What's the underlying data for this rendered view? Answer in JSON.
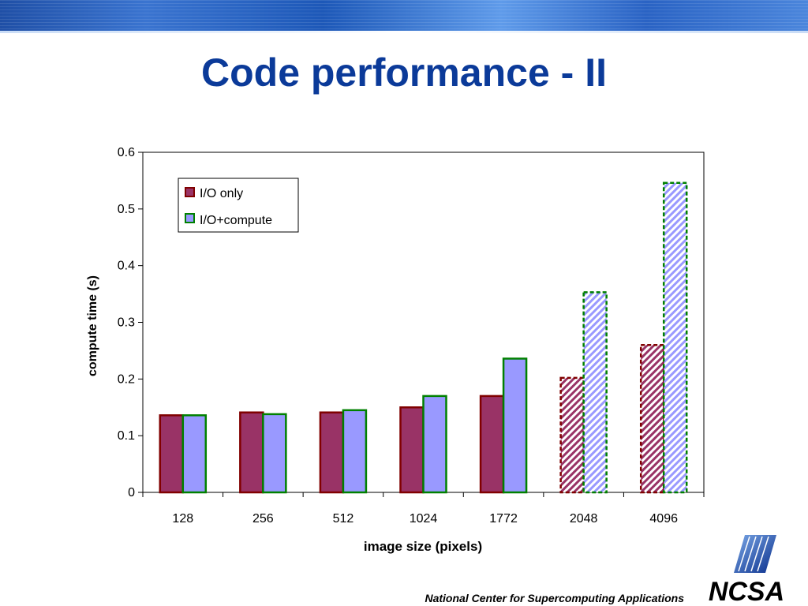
{
  "slide": {
    "title": "Code performance - II",
    "footer": "National Center for Supercomputing Applications",
    "logo_text": "NCSA"
  },
  "chart_data": {
    "type": "bar",
    "title": "",
    "xlabel": "image size (pixels)",
    "ylabel": "compute time (s)",
    "ylim": [
      0,
      0.6
    ],
    "yticks": [
      "0",
      "0.1",
      "0.2",
      "0.3",
      "0.4",
      "0.5",
      "0.6"
    ],
    "categories": [
      "128",
      "256",
      "512",
      "1024",
      "1772",
      "2048",
      "4096"
    ],
    "series": [
      {
        "name": "I/O only",
        "values": [
          0.136,
          0.141,
          0.141,
          0.15,
          0.17,
          0.202,
          0.26
        ],
        "fill": "#993366",
        "stroke": "#800000"
      },
      {
        "name": "I/O+compute",
        "values": [
          0.136,
          0.138,
          0.145,
          0.17,
          0.236,
          0.353,
          0.546
        ],
        "fill": "#9999ff",
        "stroke": "#008000"
      }
    ],
    "hatched_categories": [
      "2048",
      "4096"
    ],
    "legend_position": "top-left",
    "grid": false
  }
}
